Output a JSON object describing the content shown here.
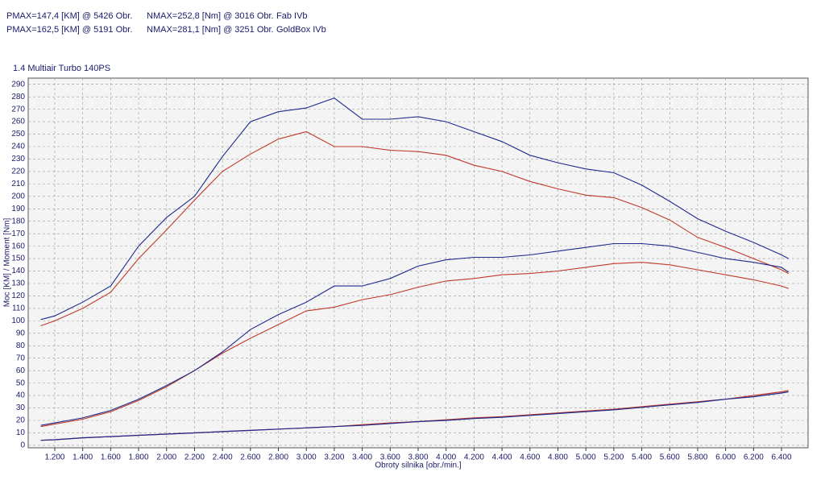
{
  "chart_data": {
    "type": "line",
    "title": "1.4 Multiair Turbo 140PS",
    "x_label": "Obroty silnika [obr./min.]",
    "y_label": "Moc [KM] / Moment [Nm]",
    "xlim": [
      1010,
      6590
    ],
    "ylim": [
      -2,
      295
    ],
    "grid": true,
    "xticks": [
      {
        "value": 1200,
        "label": "1.200"
      },
      {
        "value": 1400,
        "label": "1.400"
      },
      {
        "value": 1600,
        "label": "1.600"
      },
      {
        "value": 1800,
        "label": "1.800"
      },
      {
        "value": 2000,
        "label": "2.000"
      },
      {
        "value": 2200,
        "label": "2.200"
      },
      {
        "value": 2400,
        "label": "2.400"
      },
      {
        "value": 2600,
        "label": "2.600"
      },
      {
        "value": 2800,
        "label": "2.800"
      },
      {
        "value": 3000,
        "label": "3.000"
      },
      {
        "value": 3200,
        "label": "3.200"
      },
      {
        "value": 3400,
        "label": "3.400"
      },
      {
        "value": 3600,
        "label": "3.600"
      },
      {
        "value": 3800,
        "label": "3.800"
      },
      {
        "value": 4000,
        "label": "4.000"
      },
      {
        "value": 4200,
        "label": "4.200"
      },
      {
        "value": 4400,
        "label": "4.400"
      },
      {
        "value": 4600,
        "label": "4.600"
      },
      {
        "value": 4800,
        "label": "4.800"
      },
      {
        "value": 5000,
        "label": "5.000"
      },
      {
        "value": 5200,
        "label": "5.200"
      },
      {
        "value": 5400,
        "label": "5.400"
      },
      {
        "value": 5600,
        "label": "5.600"
      },
      {
        "value": 5800,
        "label": "5.800"
      },
      {
        "value": 6000,
        "label": "6.000"
      },
      {
        "value": 6200,
        "label": "6.200"
      },
      {
        "value": 6400,
        "label": "6.400"
      }
    ],
    "yticks": [
      0,
      10,
      20,
      30,
      40,
      50,
      60,
      70,
      80,
      90,
      100,
      110,
      120,
      130,
      140,
      150,
      160,
      170,
      180,
      190,
      200,
      210,
      220,
      230,
      240,
      250,
      260,
      270,
      280,
      290
    ],
    "x": [
      1100,
      1200,
      1400,
      1600,
      1800,
      2000,
      2200,
      2400,
      2600,
      2800,
      3000,
      3200,
      3400,
      3600,
      3800,
      4000,
      4200,
      4400,
      4600,
      4800,
      5000,
      5200,
      5400,
      5600,
      5800,
      6000,
      6200,
      6400,
      6450
    ],
    "series": [
      {
        "name": "Fab IVb",
        "color": "#c0392b",
        "pmax": "PMAX=147,4 [KM] @ 5426 Obr.",
        "nmax": "NMAX=252,8 [Nm] @ 3016 Obr.",
        "torque": [
          96,
          100,
          110,
          123,
          150,
          173,
          197,
          220,
          234,
          246,
          252,
          240,
          240,
          237,
          236,
          233,
          225,
          220,
          212,
          206,
          201,
          199,
          191,
          181,
          167,
          159,
          150,
          141,
          138
        ],
        "power": [
          15,
          17,
          21,
          27,
          36,
          47,
          60,
          74,
          86,
          97,
          108,
          111,
          117,
          121,
          127,
          132,
          134,
          137,
          138,
          140,
          143,
          146,
          147,
          145,
          141,
          137,
          133,
          128,
          126
        ],
        "loss": [
          4,
          4.5,
          6,
          7,
          8,
          9,
          10,
          11,
          12,
          13,
          14,
          15,
          16.5,
          18,
          19,
          20.5,
          22,
          23,
          24.5,
          26,
          27.5,
          29,
          31,
          33,
          35,
          37,
          40,
          43,
          44
        ]
      },
      {
        "name": "GoldBox IVb",
        "color": "#1f2a8c",
        "pmax": "PMAX=162,5 [KM] @ 5191 Obr.",
        "nmax": "NMAX=281,1 [Nm] @ 3251 Obr.",
        "torque": [
          101,
          104,
          115,
          128,
          160,
          183,
          200,
          232,
          260,
          268,
          271,
          279,
          262,
          262,
          264,
          260,
          252,
          244,
          233,
          227,
          222,
          219,
          209,
          196,
          182,
          172,
          163,
          153,
          150
        ],
        "power": [
          16,
          18,
          22,
          28,
          37,
          48,
          60,
          75,
          93,
          105,
          115,
          128,
          128,
          134,
          144,
          149,
          151,
          151,
          153,
          156,
          159,
          162,
          162,
          160,
          155,
          150,
          147,
          143,
          139
        ],
        "loss": [
          4,
          4.5,
          6,
          7,
          8,
          9,
          10,
          11,
          12,
          13,
          14,
          15,
          16,
          17.5,
          19,
          20,
          21.5,
          22.5,
          24,
          25.5,
          27,
          28.5,
          30.5,
          32.5,
          34.5,
          37,
          39,
          42,
          43
        ]
      }
    ]
  }
}
